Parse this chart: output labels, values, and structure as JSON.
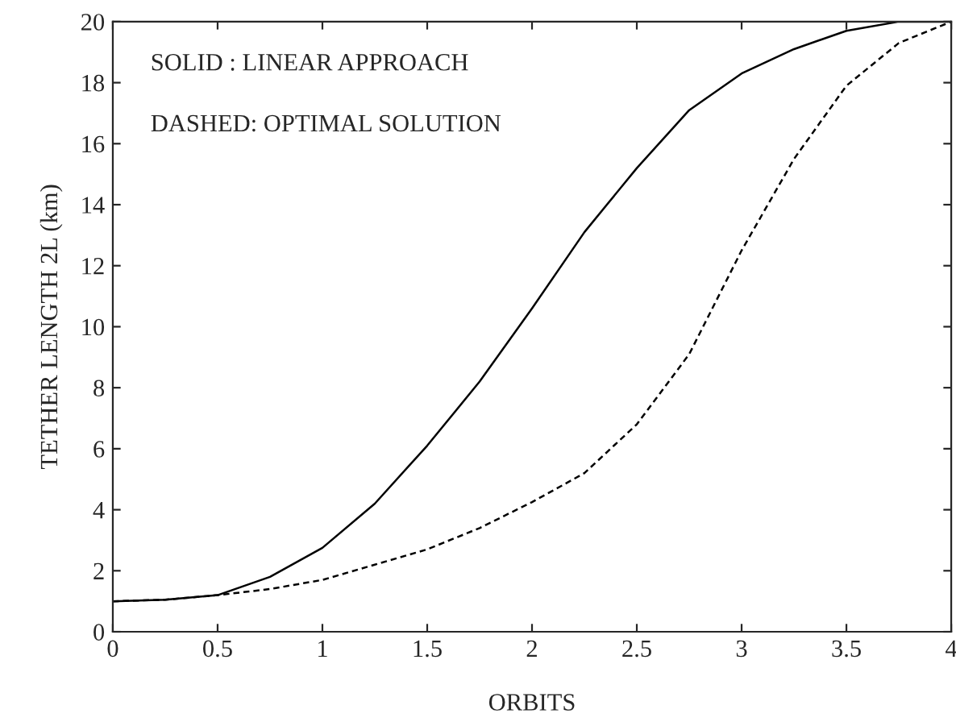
{
  "chart_data": {
    "type": "line",
    "xlabel": "ORBITS",
    "ylabel": "TETHER LENGTH 2L (km)",
    "annotations": [
      "SOLID : LINEAR APPROACH",
      "DASHED: OPTIMAL SOLUTION"
    ],
    "x": [
      0,
      0.25,
      0.5,
      0.75,
      1,
      1.25,
      1.5,
      1.75,
      2,
      2.25,
      2.5,
      2.75,
      3,
      3.25,
      3.5,
      3.75,
      4
    ],
    "series": [
      {
        "color": "#000000",
        "line_style": "solid",
        "values": [
          1,
          1.05,
          1.2,
          1.8,
          2.75,
          4.2,
          6.1,
          8.2,
          10.6,
          13.1,
          15.2,
          17.1,
          18.3,
          19.1,
          19.7,
          20,
          20
        ]
      },
      {
        "color": "#000000",
        "line_style": "dashed",
        "values": [
          1,
          1.05,
          1.2,
          1.4,
          1.7,
          2.2,
          2.7,
          3.4,
          4.25,
          5.2,
          6.8,
          9.1,
          12.5,
          15.5,
          17.9,
          19.3,
          20
        ]
      }
    ],
    "xlim": [
      0,
      4
    ],
    "ylim": [
      0,
      20
    ],
    "xticks": [
      0,
      0.5,
      1,
      1.5,
      2,
      2.5,
      3,
      3.5,
      4
    ],
    "yticks": [
      0,
      2,
      4,
      6,
      8,
      10,
      12,
      14,
      16,
      18,
      20
    ],
    "grid": false,
    "legend": false
  }
}
